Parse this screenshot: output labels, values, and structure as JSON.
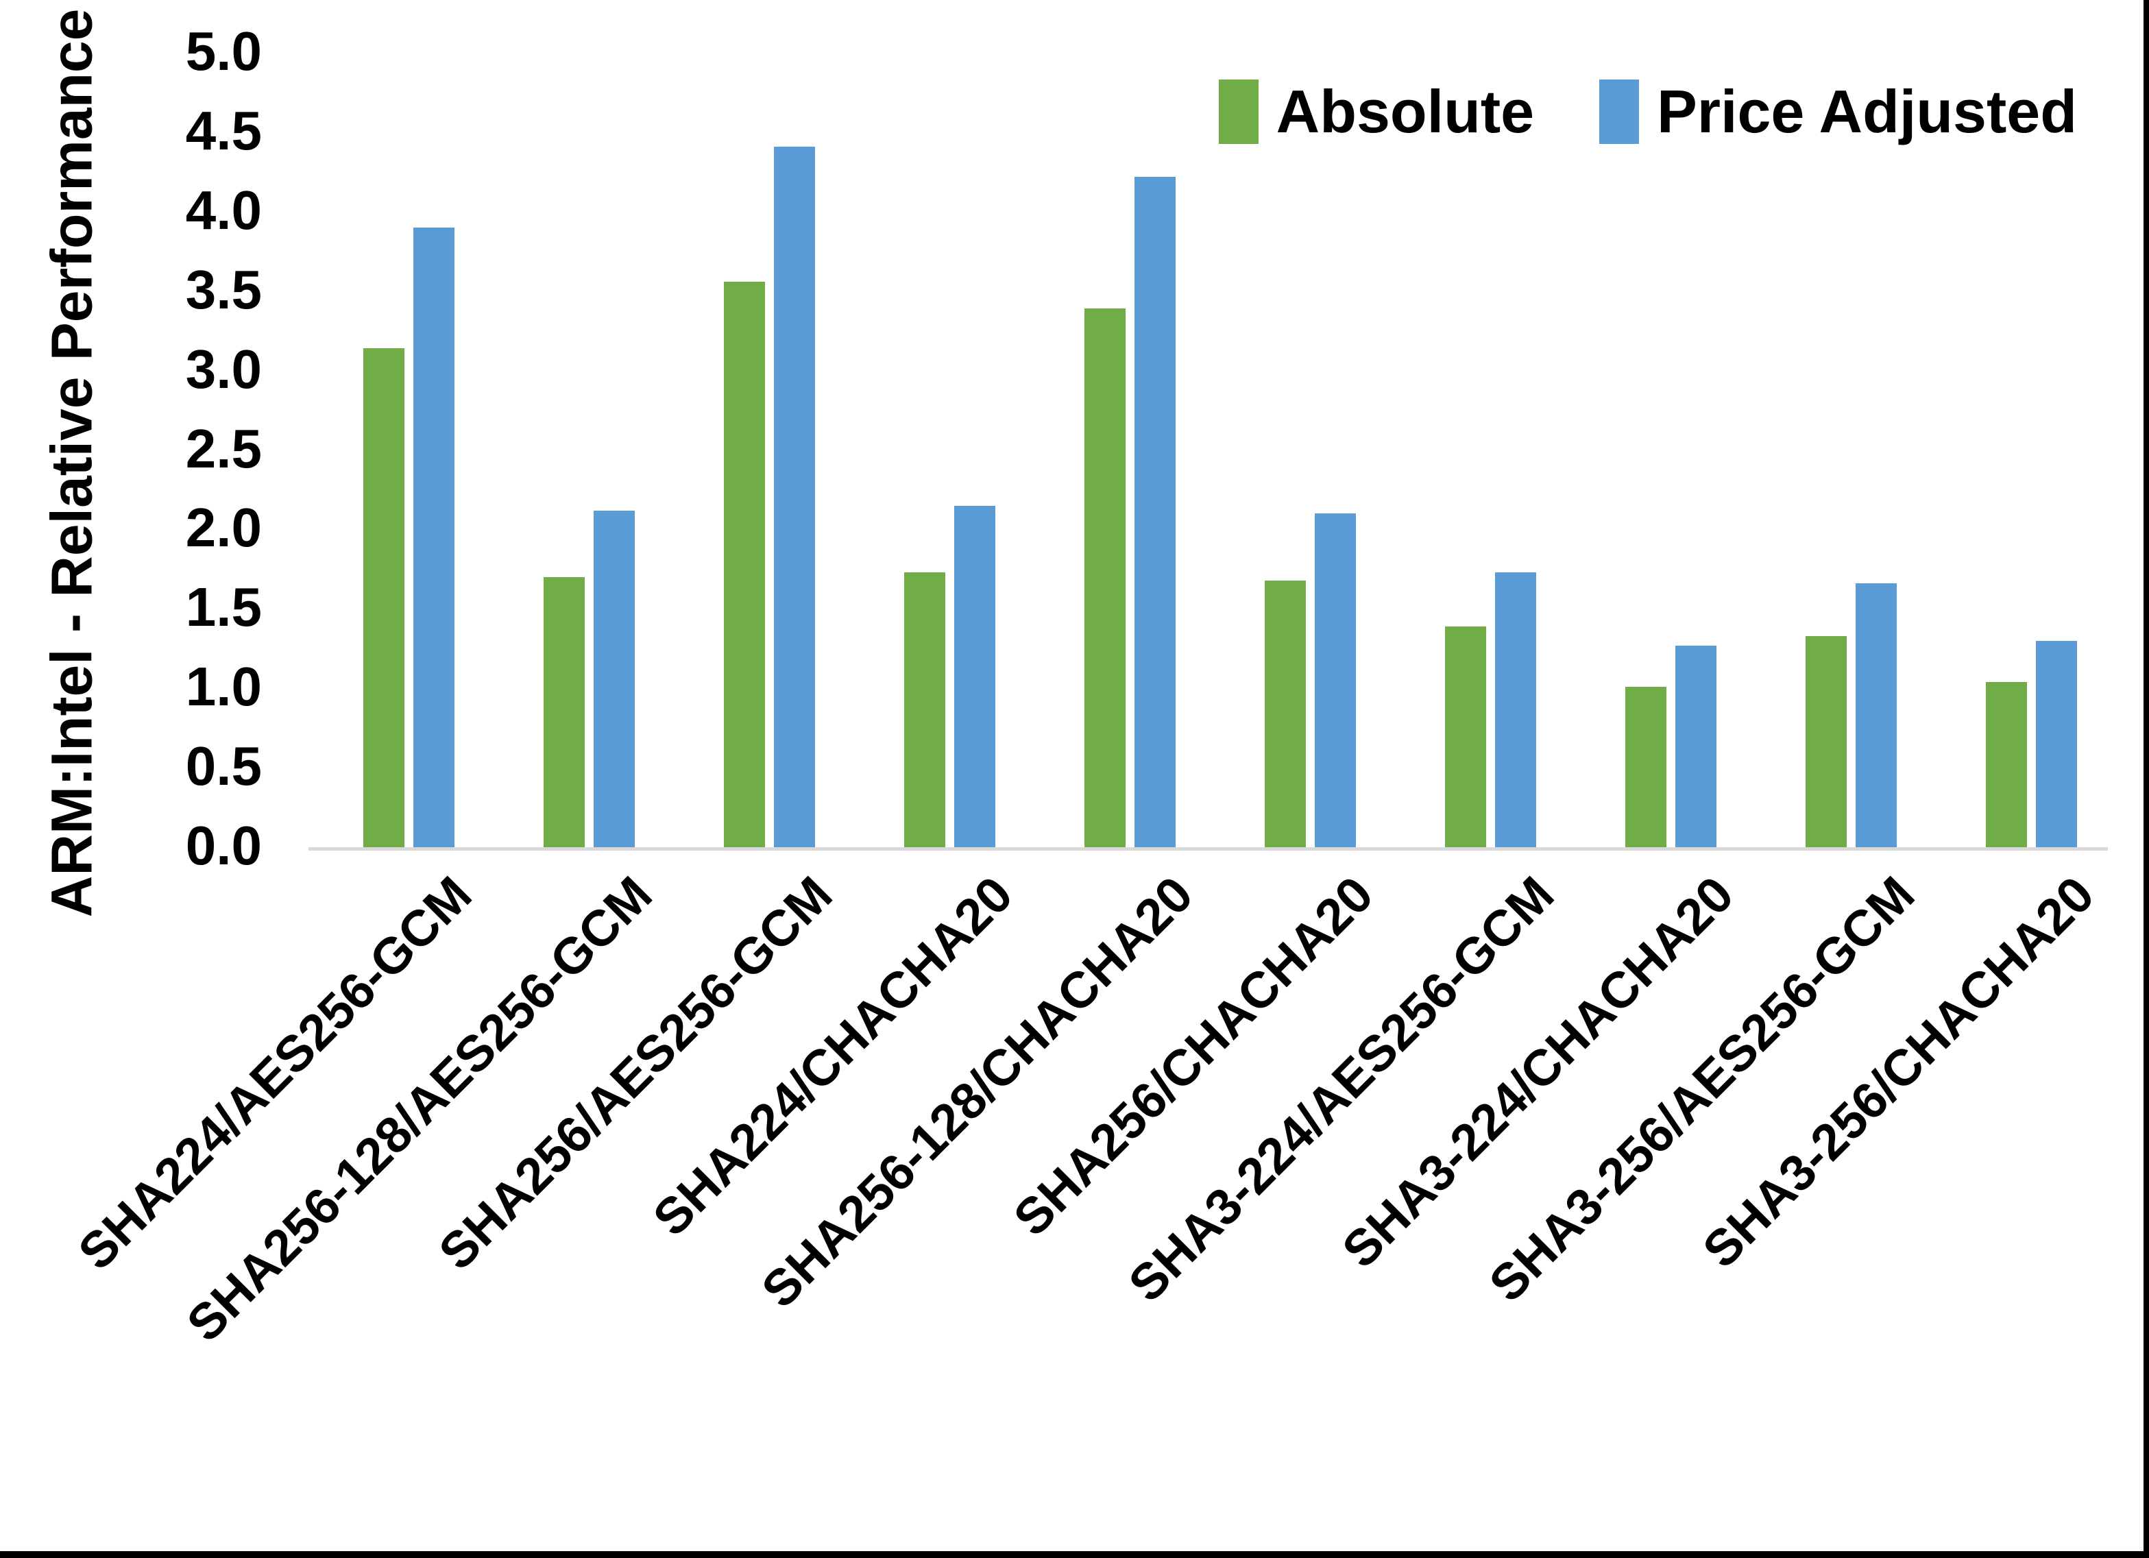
{
  "chart_data": {
    "type": "bar",
    "title": "",
    "xlabel": "",
    "ylabel": "ARM:Intel - Relative Performance",
    "ylim": [
      0.0,
      5.0
    ],
    "ytick_step": 0.5,
    "grid": false,
    "legend_position": "top-right",
    "categories": [
      "SHA224/AES256-GCM",
      "SHA256-128/AES256-GCM",
      "SHA256/AES256-GCM",
      "SHA224/CHACHA20",
      "SHA256-128/CHACHA20",
      "SHA256/CHACHA20",
      "SHA3-224/AES256-GCM",
      "SHA3-224/CHACHA20",
      "SHA3-256/AES256-GCM",
      "SHA3-256/CHACHA20"
    ],
    "series": [
      {
        "name": "Absolute",
        "color": "#70AD47",
        "values": [
          3.14,
          1.7,
          3.56,
          1.73,
          3.39,
          1.68,
          1.39,
          1.01,
          1.33,
          1.04
        ]
      },
      {
        "name": "Price Adjusted",
        "color": "#5B9BD5",
        "values": [
          3.9,
          2.12,
          4.41,
          2.15,
          4.22,
          2.1,
          1.73,
          1.27,
          1.66,
          1.3
        ]
      }
    ]
  },
  "axes": {
    "y_tick_labels": [
      "5.0",
      "4.5",
      "4.0",
      "3.5",
      "3.0",
      "2.5",
      "2.0",
      "1.5",
      "1.0",
      "0.5",
      "0.0"
    ]
  },
  "legend": {
    "items": [
      {
        "label": "Absolute",
        "color": "#70AD47"
      },
      {
        "label": "Price Adjusted",
        "color": "#5B9BD5"
      }
    ]
  },
  "colors": {
    "background": "#FFFFFF",
    "axis_line": "#D9D9D9",
    "text": "#000000",
    "frame_border": "#000000"
  }
}
